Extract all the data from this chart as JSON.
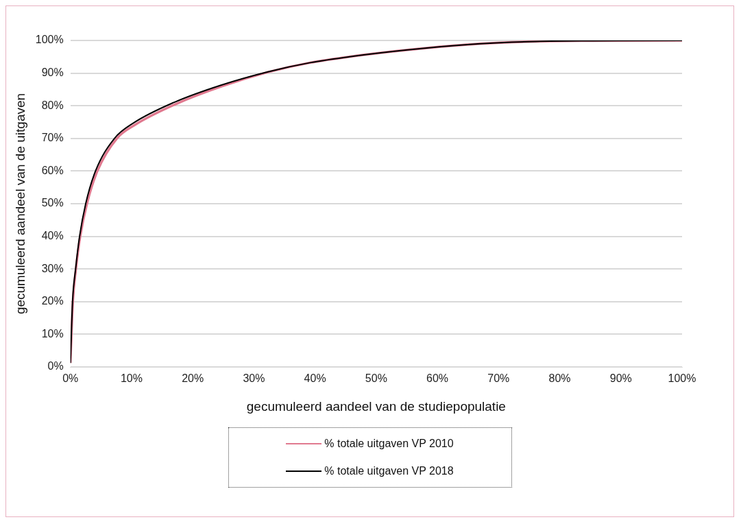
{
  "chart_data": {
    "type": "line",
    "xlabel": "gecumuleerd aandeel van de studiepopulatie",
    "ylabel": "gecumuleerd aandeel van de uitgaven",
    "xlim": [
      0,
      100
    ],
    "ylim": [
      0,
      100
    ],
    "xticks": [
      {
        "value": 0,
        "label": "0%"
      },
      {
        "value": 10,
        "label": "10%"
      },
      {
        "value": 20,
        "label": "20%"
      },
      {
        "value": 30,
        "label": "30%"
      },
      {
        "value": 40,
        "label": "40%"
      },
      {
        "value": 50,
        "label": "50%"
      },
      {
        "value": 60,
        "label": "60%"
      },
      {
        "value": 70,
        "label": "70%"
      },
      {
        "value": 80,
        "label": "80%"
      },
      {
        "value": 90,
        "label": "90%"
      },
      {
        "value": 100,
        "label": "100%"
      }
    ],
    "yticks": [
      {
        "value": 0,
        "label": "0%"
      },
      {
        "value": 10,
        "label": "10%"
      },
      {
        "value": 20,
        "label": "20%"
      },
      {
        "value": 30,
        "label": "30%"
      },
      {
        "value": 40,
        "label": "40%"
      },
      {
        "value": 50,
        "label": "50%"
      },
      {
        "value": 60,
        "label": "60%"
      },
      {
        "value": 70,
        "label": "70%"
      },
      {
        "value": 80,
        "label": "80%"
      },
      {
        "value": 90,
        "label": "90%"
      },
      {
        "value": 100,
        "label": "100%"
      }
    ],
    "grid": "y",
    "legend": "bottom",
    "marker": "none",
    "line_style": "solid",
    "series": [
      {
        "name": "% totale uitgaven VP 2010",
        "color": "#e0798f",
        "x": [
          0,
          0.4,
          0.9,
          1.6,
          2.7,
          4.4,
          7.6,
          10.6,
          17.2,
          24.8,
          32.3,
          39.2,
          48.4,
          57.7,
          67,
          76.2,
          85.5,
          100
        ],
        "values": [
          1.2,
          20,
          30,
          40,
          50,
          60,
          70,
          74.2,
          80.5,
          86,
          90.3,
          93.2,
          95.7,
          97.6,
          99,
          99.7,
          99.9,
          100
        ]
      },
      {
        "name": "% totale uitgaven VP 2018",
        "color": "#000000",
        "x": [
          0,
          0.35,
          0.85,
          1.5,
          2.5,
          4.1,
          7.2,
          10.3,
          16.9,
          24.6,
          32.3,
          39.2,
          48.4,
          57.7,
          67,
          76.2,
          85.5,
          100
        ],
        "values": [
          1.2,
          20,
          30,
          40,
          50,
          60,
          70,
          74.7,
          81,
          86.3,
          90.4,
          93.2,
          95.7,
          97.6,
          99,
          99.7,
          99.9,
          100
        ]
      }
    ]
  }
}
